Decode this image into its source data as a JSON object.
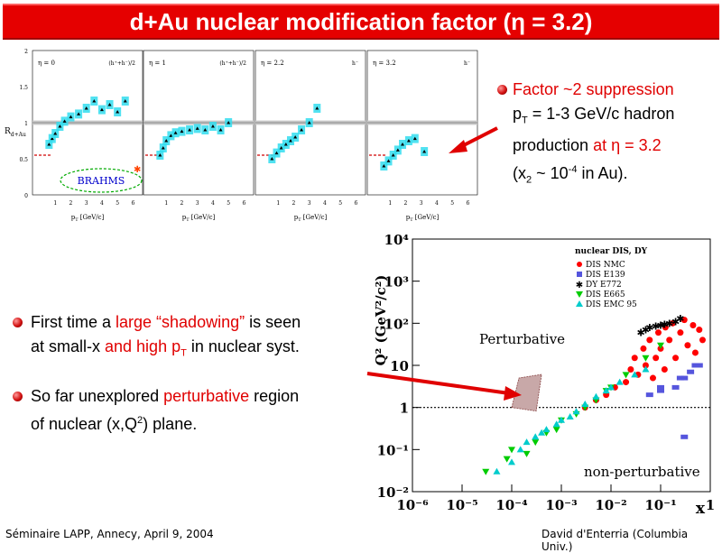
{
  "slide": {
    "title": "d+Au nuclear modification factor (η = 3.2)",
    "top_bullet": {
      "line1": "Factor ~2 suppression",
      "line2_a": "p",
      "line2_sub": "T",
      "line2_b": " = 1-3 GeV/c hadron",
      "line3_a": "production ",
      "line3_red": "at η = 3.2",
      "line4_a": "(x",
      "line4_sub": "2",
      "line4_b": " ~ 10",
      "line4_sup": "-4",
      "line4_c": " in Au)."
    },
    "bullet1": {
      "a": "First time a ",
      "red1": "large “shadowing”",
      "b": " is seen",
      "c": "at small-x ",
      "red2": "and high p",
      "red2_sub": "T",
      "d": " in nuclear syst."
    },
    "bullet2": {
      "a": " So far unexplored ",
      "red": "perturbative",
      "b": " region",
      "c": "of nuclear (x,Q",
      "c_sup": "2",
      "d": ") plane."
    },
    "footer_left": "Séminaire LAPP, Annecy, April 9, 2004",
    "footer_right": "David d'Enterria (Columbia Univ.)"
  },
  "brahms_figure": {
    "y_axis_label": "R",
    "y_axis_sub": "d+Au",
    "y_ticks": [
      "0",
      "0.5",
      "1",
      "1.5",
      "2"
    ],
    "x_ticks": [
      "1",
      "2",
      "3",
      "4",
      "5",
      "6"
    ],
    "x_label": "p",
    "x_label_sub": "T",
    "x_label_unit": " [GeV/c]",
    "logo": "BRAHMS",
    "panels": [
      {
        "eta": "η = 0",
        "charge": "(h⁺+h⁻)/2"
      },
      {
        "eta": "η = 1",
        "charge": "(h⁺+h⁻)/2"
      },
      {
        "eta": "η = 2.2",
        "charge": "h⁻"
      },
      {
        "eta": "η = 3.2",
        "charge": "h⁻"
      }
    ]
  },
  "chart_data": {
    "type": "scatter",
    "title": "",
    "xlabel": "x",
    "ylabel": "Q² (GeV²/c²)",
    "x_scale": "log",
    "y_scale": "log",
    "xlim": [
      1e-06,
      1
    ],
    "ylim": [
      0.01,
      10000
    ],
    "x_tick_labels": [
      "10⁻⁶",
      "10⁻⁵",
      "10⁻⁴",
      "10⁻³",
      "10⁻²",
      "10⁻¹",
      "1"
    ],
    "y_tick_labels": [
      "10⁻²",
      "10⁻¹",
      "1",
      "10",
      "10²",
      "10³",
      "10⁴"
    ],
    "legend_title": "nuclear DIS, DY",
    "legend_position": "top-right",
    "reference_line_y": 1,
    "annotations": [
      "Perturbative",
      "non-perturbative"
    ],
    "highlighted_region": {
      "x_range": [
        0.0001,
        0.0004
      ],
      "q2_range": [
        1,
        5
      ]
    },
    "series": [
      {
        "name": "DIS NMC",
        "color": "#ff0000",
        "marker": "circle",
        "points": [
          [
            0.003,
            1
          ],
          [
            0.005,
            1.5
          ],
          [
            0.008,
            2
          ],
          [
            0.012,
            3
          ],
          [
            0.02,
            4
          ],
          [
            0.025,
            8
          ],
          [
            0.03,
            15
          ],
          [
            0.035,
            6
          ],
          [
            0.045,
            25
          ],
          [
            0.05,
            10
          ],
          [
            0.06,
            40
          ],
          [
            0.07,
            5
          ],
          [
            0.08,
            15
          ],
          [
            0.09,
            60
          ],
          [
            0.1,
            25
          ],
          [
            0.12,
            8
          ],
          [
            0.125,
            80
          ],
          [
            0.15,
            40
          ],
          [
            0.175,
            100
          ],
          [
            0.2,
            15
          ],
          [
            0.25,
            60
          ],
          [
            0.3,
            120
          ],
          [
            0.35,
            30
          ],
          [
            0.45,
            90
          ],
          [
            0.5,
            20
          ],
          [
            0.6,
            70
          ],
          [
            0.7,
            40
          ]
        ]
      },
      {
        "name": "DIS E139",
        "color": "#5555dd",
        "marker": "square",
        "points": [
          [
            0.06,
            2
          ],
          [
            0.1,
            2.5
          ],
          [
            0.1,
            3
          ],
          [
            0.2,
            3
          ],
          [
            0.25,
            5
          ],
          [
            0.3,
            5
          ],
          [
            0.4,
            7
          ],
          [
            0.5,
            10
          ],
          [
            0.6,
            10
          ],
          [
            0.3,
            0.2
          ]
        ]
      },
      {
        "name": "DY E772",
        "color": "#000000",
        "marker": "star",
        "points": [
          [
            0.04,
            60
          ],
          [
            0.05,
            70
          ],
          [
            0.06,
            80
          ],
          [
            0.08,
            85
          ],
          [
            0.1,
            90
          ],
          [
            0.12,
            95
          ],
          [
            0.15,
            100
          ],
          [
            0.2,
            110
          ],
          [
            0.25,
            130
          ]
        ]
      },
      {
        "name": "DIS E665",
        "color": "#00cc00",
        "marker": "triangle-down",
        "points": [
          [
            3e-05,
            0.03
          ],
          [
            8e-05,
            0.06
          ],
          [
            0.0001,
            0.1
          ],
          [
            0.0002,
            0.08
          ],
          [
            0.0003,
            0.15
          ],
          [
            0.0005,
            0.25
          ],
          [
            0.0008,
            0.3
          ],
          [
            0.001,
            0.5
          ],
          [
            0.002,
            0.7
          ],
          [
            0.003,
            1
          ],
          [
            0.005,
            1.5
          ],
          [
            0.008,
            2.5
          ],
          [
            0.01,
            3
          ],
          [
            0.02,
            6
          ],
          [
            0.05,
            15
          ],
          [
            0.1,
            30
          ]
        ]
      },
      {
        "name": "DIS EMC 95",
        "color": "#00cccc",
        "marker": "triangle-up",
        "points": [
          [
            5e-05,
            0.03
          ],
          [
            0.0001,
            0.05
          ],
          [
            0.00015,
            0.1
          ],
          [
            0.0002,
            0.15
          ],
          [
            0.0003,
            0.2
          ],
          [
            0.0004,
            0.25
          ],
          [
            0.0005,
            0.3
          ],
          [
            0.0008,
            0.4
          ],
          [
            0.001,
            0.5
          ],
          [
            0.0015,
            0.6
          ],
          [
            0.002,
            0.8
          ],
          [
            0.003,
            1.2
          ],
          [
            0.005,
            1.8
          ],
          [
            0.008,
            2.5
          ],
          [
            0.01,
            3
          ],
          [
            0.015,
            4
          ],
          [
            0.03,
            6
          ],
          [
            0.05,
            8
          ]
        ]
      }
    ]
  }
}
